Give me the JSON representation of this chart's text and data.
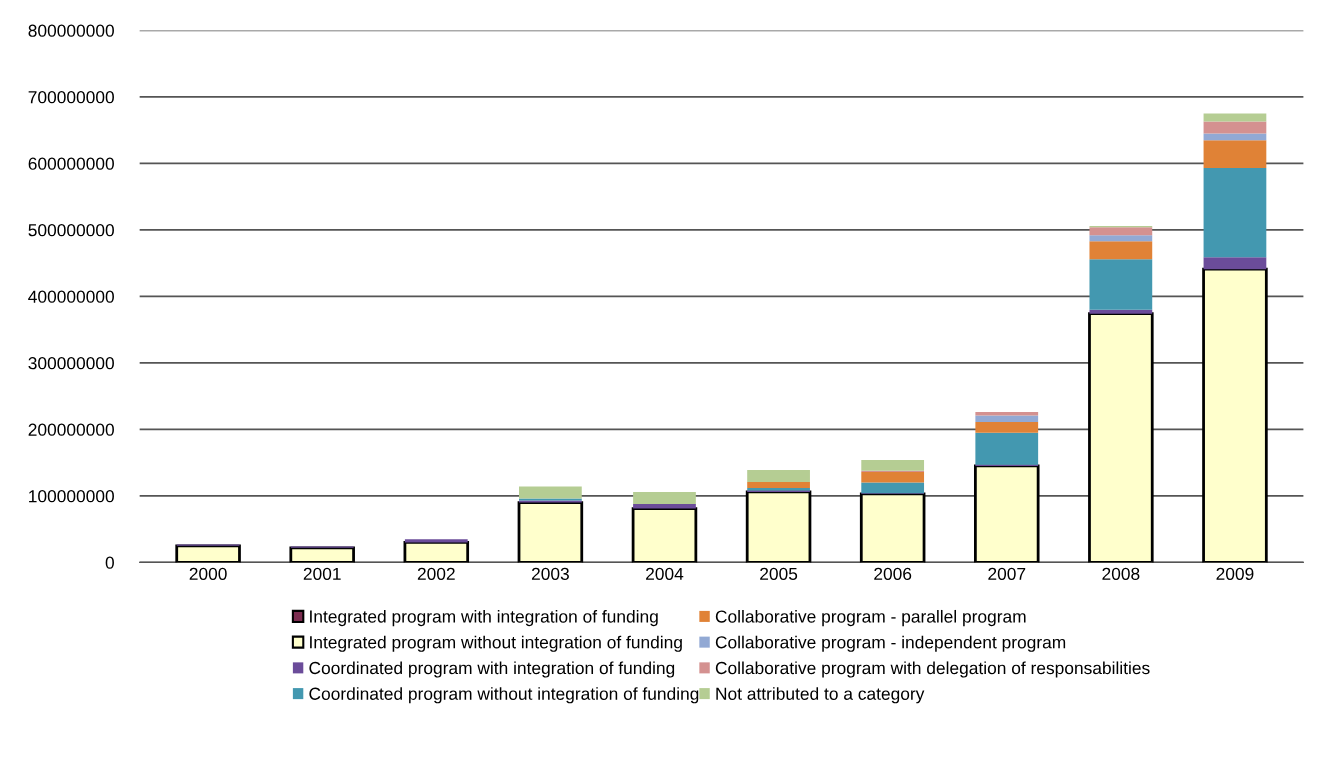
{
  "chart_data": {
    "type": "bar",
    "stacked": true,
    "categories": [
      "2000",
      "2001",
      "2002",
      "2003",
      "2004",
      "2005",
      "2006",
      "2007",
      "2008",
      "2009"
    ],
    "series": [
      {
        "name": "Integrated program with integration of funding",
        "color": "#7b2c4f",
        "values": [
          0,
          0,
          0,
          0,
          0,
          0,
          0,
          0,
          0,
          0
        ]
      },
      {
        "name": "Integrated program without integration of funding",
        "color": "#ffffcc",
        "values": [
          25000000,
          22000000,
          30000000,
          90000000,
          81000000,
          106000000,
          103000000,
          145000000,
          374000000,
          441000000
        ]
      },
      {
        "name": "Coordinated program with integration of funding",
        "color": "#6b4c9a",
        "values": [
          2000000,
          2000000,
          5000000,
          3000000,
          7000000,
          2000000,
          1000000,
          2000000,
          6000000,
          18000000
        ]
      },
      {
        "name": "Coordinated program without integration of funding",
        "color": "#4398b0",
        "values": [
          0,
          0,
          0,
          3000000,
          0,
          4000000,
          16000000,
          48000000,
          76000000,
          134000000
        ]
      },
      {
        "name": "Collaborative program - parallel program",
        "color": "#e08236",
        "values": [
          0,
          0,
          0,
          0,
          0,
          9000000,
          16000000,
          16000000,
          27000000,
          42000000
        ]
      },
      {
        "name": "Collaborative program - independent program",
        "color": "#92a9d4",
        "values": [
          0,
          0,
          0,
          0,
          0,
          0,
          0,
          10000000,
          9000000,
          10000000
        ]
      },
      {
        "name": "Collaborative program with delegation of responsabilities",
        "color": "#d49190",
        "values": [
          0,
          0,
          0,
          0,
          0,
          0,
          2000000,
          5000000,
          12000000,
          18000000
        ]
      },
      {
        "name": "Not attributed to a category",
        "color": "#b5cd93",
        "values": [
          0,
          0,
          0,
          18000000,
          18000000,
          18000000,
          16000000,
          0,
          2000000,
          12000000
        ]
      }
    ],
    "ylim": [
      0,
      800000000
    ],
    "yticks": [
      0,
      100000000,
      200000000,
      300000000,
      400000000,
      500000000,
      600000000,
      700000000,
      800000000
    ],
    "grid": "y",
    "legend": "bottom"
  }
}
